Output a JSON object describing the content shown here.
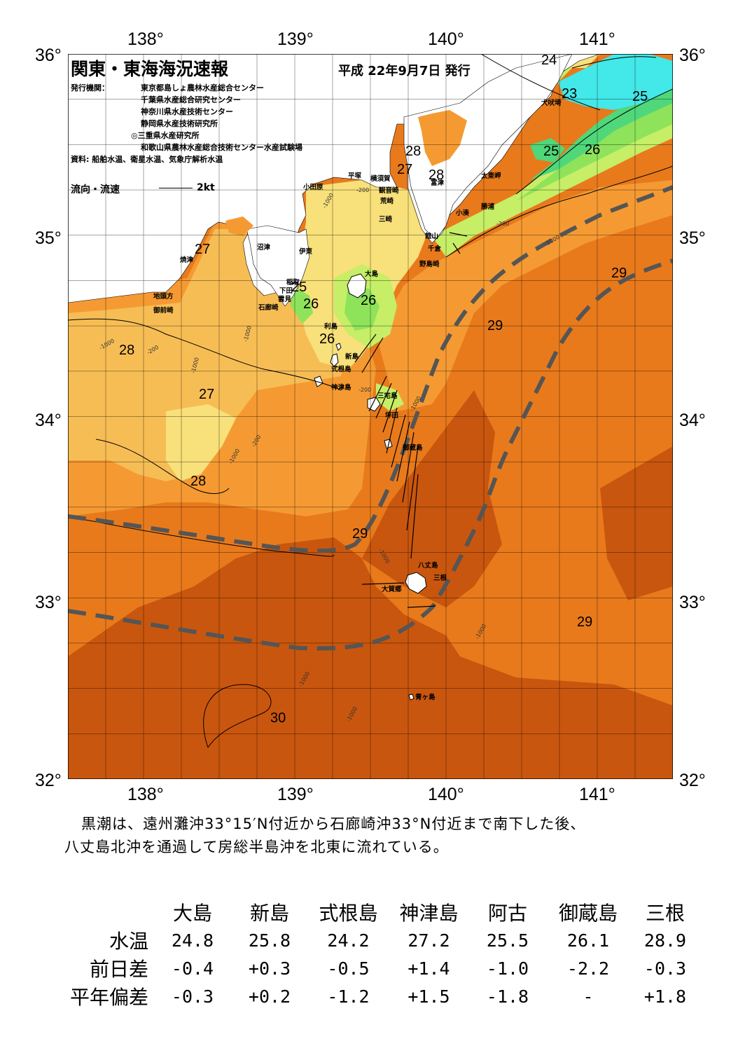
{
  "header": {
    "title": "関東・東海海況速報",
    "date": "平成 22年9月7日 発行",
    "issuer_label": "発行機関：",
    "issuers": [
      "東京都島しょ農林水産総合センター",
      "千葉県水産総合研究センター",
      "神奈川県水産技術センター",
      "静岡県水産技術研究所",
      "◎三重県水産研究所",
      "和歌山県農林水産総合技術センター水産試験場"
    ],
    "sources": "資料: 船舶水温、衛星水温、気象庁解析水温",
    "flow_label": "流向・流速",
    "flow_scale": "2kt"
  },
  "axes": {
    "lon_labels": [
      "138°",
      "139°",
      "140°",
      "141°"
    ],
    "lat_labels": [
      "36°",
      "35°",
      "34°",
      "33°",
      "32°"
    ]
  },
  "map": {
    "lon_range": [
      137.5,
      141.5
    ],
    "lat_range": [
      32,
      36
    ],
    "colors": {
      "sea_30": "#c9560e",
      "sea_29": "#e87a1c",
      "sea_28": "#f59a32",
      "sea_27": "#f7bd55",
      "sea_26_light": "#f8e07a",
      "sea_26": "#c6ee66",
      "sea_25": "#8ee35a",
      "sea_24": "#4fd77a",
      "sea_23": "#43e8e8",
      "land": "#ffffff",
      "kuroshio": "#555555"
    },
    "isotherms": [
      "24",
      "23",
      "25",
      "25",
      "26",
      "28",
      "27",
      "28",
      "27",
      "25",
      "26",
      "26",
      "26",
      "28",
      "27",
      "28",
      "29",
      "29",
      "29",
      "29",
      "30"
    ],
    "depth_labels": [
      "-200",
      "-1000",
      "-200",
      "-1000",
      "-1000",
      "-1000",
      "-200",
      "-1000",
      "-200",
      "-200",
      "-1000",
      "-1000",
      "-1000",
      "-1000",
      "-1000",
      "-1000"
    ],
    "places": [
      "犬吠埼",
      "太東岬",
      "勝浦",
      "小湊",
      "館山",
      "千倉",
      "野島崎",
      "富津",
      "観音崎",
      "横須賀",
      "荒崎",
      "三崎",
      "平塚",
      "小田原",
      "沼津",
      "伊東",
      "焼津",
      "稲取",
      "下田",
      "雲見",
      "石廊崎",
      "地頭方",
      "御前崎",
      "大島",
      "利島",
      "新島",
      "式根島",
      "神津島",
      "三宅島",
      "坪田",
      "御蔵島",
      "八丈島",
      "三根",
      "大賀郷",
      "青ヶ島"
    ]
  },
  "summary": [
    "黒潮は、遠州灘沖33°15′N付近から石廊崎沖33°N付近まで南下した後、",
    "八丈島北沖を通過して房総半島沖を北東に流れている。"
  ],
  "stats": {
    "columns": [
      "大島",
      "新島",
      "式根島",
      "神津島",
      "阿古",
      "御蔵島",
      "三根"
    ],
    "rows": [
      {
        "label": "水温",
        "values": [
          "24.8",
          "25.8",
          "24.2",
          "27.2",
          "25.5",
          "26.1",
          "28.9"
        ]
      },
      {
        "label": "前日差",
        "values": [
          "-0.4",
          "+0.3",
          "-0.5",
          "+1.4",
          "-1.0",
          "-2.2",
          "-0.3"
        ]
      },
      {
        "label": "平年偏差",
        "values": [
          "-0.3",
          "+0.2",
          "-1.2",
          "+1.5",
          "-1.8",
          "-",
          "+1.8"
        ]
      }
    ]
  }
}
